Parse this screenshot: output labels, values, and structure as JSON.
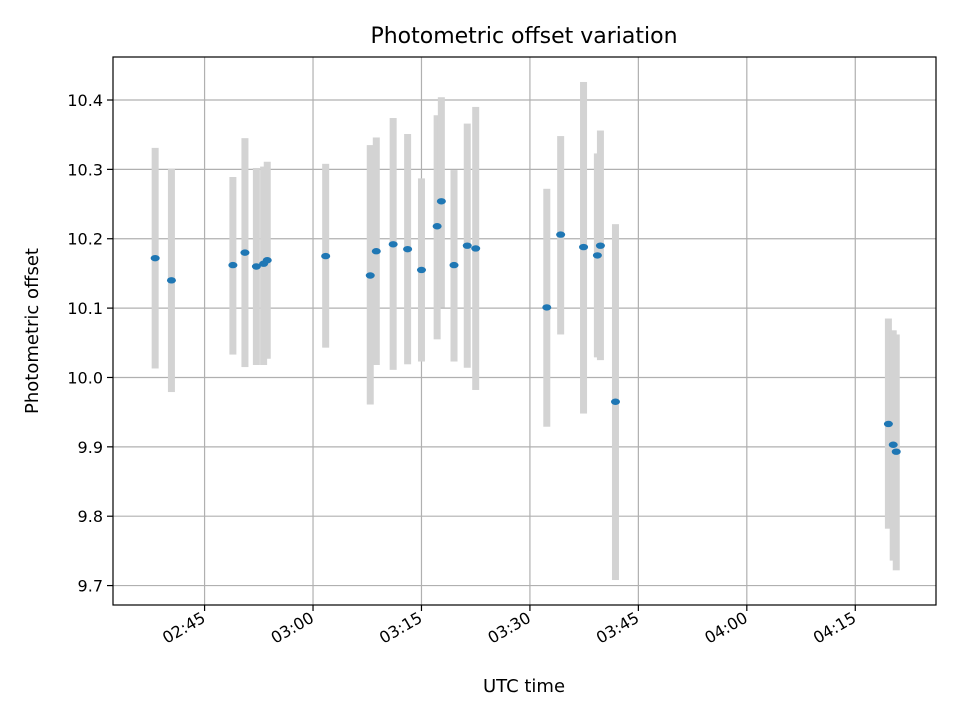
{
  "chart_data": {
    "type": "scatter",
    "title": "Photometric offset variation",
    "xlabel": "UTC time",
    "ylabel": "Photometric offset",
    "x_tick_labels": [
      "02:45",
      "03:00",
      "03:15",
      "03:30",
      "03:45",
      "04:00",
      "04:15"
    ],
    "y_ticks": [
      9.7,
      9.8,
      9.9,
      10.0,
      10.1,
      10.2,
      10.3,
      10.4
    ],
    "y_tick_labels": [
      "9.7",
      "9.8",
      "9.9",
      "10.0",
      "10.1",
      "10.2",
      "10.3",
      "10.4"
    ],
    "xlim": [
      "02:32:20",
      "04:26:10"
    ],
    "ylim": [
      9.672,
      10.462
    ],
    "grid": true,
    "point_color": "#1f77b4",
    "errorbar_color": "#d3d3d3",
    "points": [
      {
        "x": "02:38:10",
        "y": 10.172,
        "ylow": 10.013,
        "yhigh": 10.331
      },
      {
        "x": "02:40:25",
        "y": 10.14,
        "ylow": 9.979,
        "yhigh": 10.301
      },
      {
        "x": "02:48:55",
        "y": 10.162,
        "ylow": 10.033,
        "yhigh": 10.289
      },
      {
        "x": "02:50:35",
        "y": 10.18,
        "ylow": 10.015,
        "yhigh": 10.345
      },
      {
        "x": "02:52:10",
        "y": 10.16,
        "ylow": 10.018,
        "yhigh": 10.302
      },
      {
        "x": "02:53:10",
        "y": 10.164,
        "ylow": 10.018,
        "yhigh": 10.304
      },
      {
        "x": "02:53:40",
        "y": 10.169,
        "ylow": 10.027,
        "yhigh": 10.311
      },
      {
        "x": "03:01:45",
        "y": 10.175,
        "ylow": 10.043,
        "yhigh": 10.308
      },
      {
        "x": "03:07:55",
        "y": 10.147,
        "ylow": 9.961,
        "yhigh": 10.335
      },
      {
        "x": "03:08:45",
        "y": 10.182,
        "ylow": 10.018,
        "yhigh": 10.346
      },
      {
        "x": "03:11:05",
        "y": 10.192,
        "ylow": 10.011,
        "yhigh": 10.374
      },
      {
        "x": "03:13:05",
        "y": 10.185,
        "ylow": 10.019,
        "yhigh": 10.351
      },
      {
        "x": "03:15:00",
        "y": 10.155,
        "ylow": 10.023,
        "yhigh": 10.287
      },
      {
        "x": "03:17:10",
        "y": 10.218,
        "ylow": 10.055,
        "yhigh": 10.378
      },
      {
        "x": "03:17:45",
        "y": 10.254,
        "ylow": 10.101,
        "yhigh": 10.404
      },
      {
        "x": "03:19:30",
        "y": 10.162,
        "ylow": 10.023,
        "yhigh": 10.299
      },
      {
        "x": "03:21:20",
        "y": 10.19,
        "ylow": 10.014,
        "yhigh": 10.366
      },
      {
        "x": "03:22:30",
        "y": 10.186,
        "ylow": 9.982,
        "yhigh": 10.39
      },
      {
        "x": "03:32:20",
        "y": 10.101,
        "ylow": 9.929,
        "yhigh": 10.272
      },
      {
        "x": "03:34:15",
        "y": 10.206,
        "ylow": 10.062,
        "yhigh": 10.348
      },
      {
        "x": "03:37:25",
        "y": 10.188,
        "ylow": 9.948,
        "yhigh": 10.426
      },
      {
        "x": "03:39:20",
        "y": 10.176,
        "ylow": 10.029,
        "yhigh": 10.323
      },
      {
        "x": "03:39:45",
        "y": 10.19,
        "ylow": 10.025,
        "yhigh": 10.356
      },
      {
        "x": "03:41:50",
        "y": 9.965,
        "ylow": 9.708,
        "yhigh": 10.221
      },
      {
        "x": "04:19:35",
        "y": 9.933,
        "ylow": 9.782,
        "yhigh": 10.085
      },
      {
        "x": "04:20:15",
        "y": 9.903,
        "ylow": 9.736,
        "yhigh": 10.068
      },
      {
        "x": "04:20:40",
        "y": 9.893,
        "ylow": 9.722,
        "yhigh": 10.062
      }
    ]
  }
}
